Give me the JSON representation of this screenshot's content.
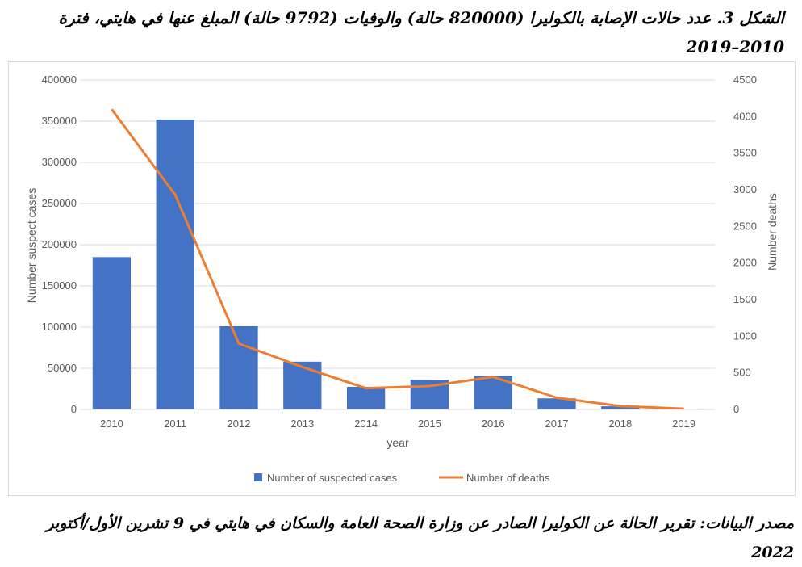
{
  "caption": {
    "title": "الشكل 3. عدد حالات الإصابة بالكوليرا (820000 حالة) والوفيات (9792 حالة) المبلغ عنها في هايتي، فترة 2010–2019",
    "source": "مصدر البيانات: تقرير الحالة عن الكوليرا الصادر عن وزارة الصحة العامة والسكان في هايتي في 9 تشرين الأول/أكتوبر 2022"
  },
  "chart_data": {
    "type": "bar",
    "categories": [
      "2010",
      "2011",
      "2012",
      "2013",
      "2014",
      "2015",
      "2016",
      "2017",
      "2018",
      "2019"
    ],
    "xlabel": "year",
    "ylabel": "Number suspect cases",
    "y2label": "Number deaths",
    "ylim": [
      0,
      400000
    ],
    "yticks": [
      "0",
      "50000",
      "100000",
      "150000",
      "200000",
      "250000",
      "300000",
      "350000",
      "400000"
    ],
    "y2lim": [
      0,
      4500
    ],
    "y2ticks": [
      "0",
      "500",
      "1000",
      "1500",
      "2000",
      "2500",
      "3000",
      "3500",
      "4000",
      "4500"
    ],
    "grid": "horizontal",
    "legend_position": "bottom",
    "series": [
      {
        "name": "Number of suspected  cases",
        "type": "bar",
        "axis": "left",
        "color": "#4472c4",
        "values": [
          185000,
          352000,
          101000,
          58000,
          27500,
          36000,
          41000,
          13500,
          3800,
          700
        ]
      },
      {
        "name": "Number of deaths",
        "type": "line",
        "axis": "right",
        "color": "#ed7d31",
        "values": [
          4100,
          2930,
          900,
          580,
          290,
          320,
          445,
          160,
          45,
          10
        ]
      }
    ]
  }
}
